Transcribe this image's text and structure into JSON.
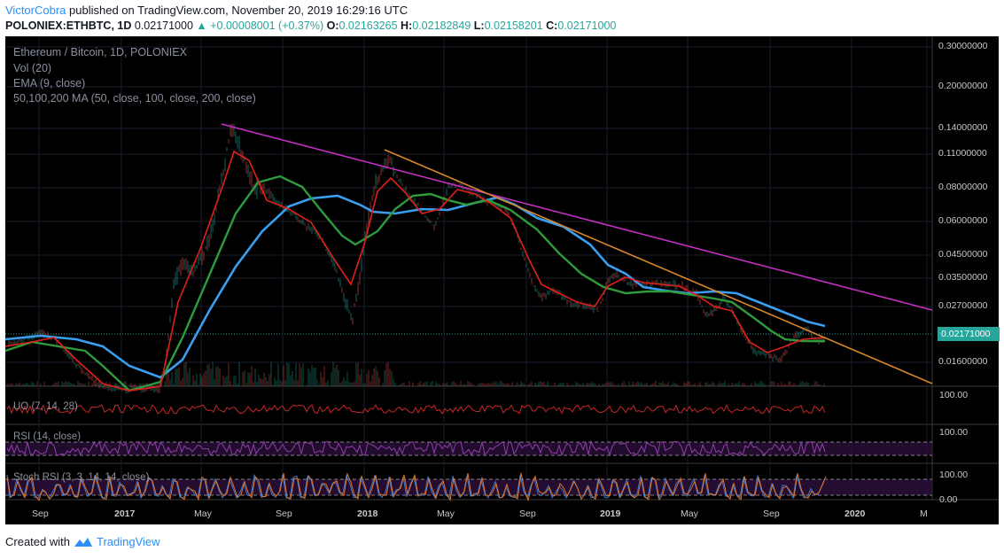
{
  "header": {
    "author": "VictorCobra",
    "published": "published on TradingView.com, November 20, 2019 16:29:16 UTC",
    "symbol": "POLONIEX:ETHBTC, 1D",
    "last": "0.02171000",
    "change": "▲ +0.00008001 (+0.37%)",
    "o_label": "O:",
    "o": "0.02163265",
    "h_label": "H:",
    "h": "0.02182849",
    "l_label": "L:",
    "l": "0.02158201",
    "c_label": "C:",
    "c": "0.02171000"
  },
  "legend": {
    "title": "Ethereum / Bitcoin, 1D, POLONIEX",
    "vol": "Vol (20)",
    "ema": "EMA (9, close)",
    "ma": "50,100,200 MA (50, close, 100, close, 200, close)"
  },
  "indicators": {
    "uo": "UO (7, 14, 28)",
    "uo_axis": "100.00",
    "rsi": "RSI (14, close)",
    "rsi_axis": "100.00",
    "stoch": "Stoch RSI (3, 3, 14, 14, close)",
    "stoch_axis_top": "100.00",
    "stoch_axis_bottom": "0.00"
  },
  "price_axis": [
    "0.30000000",
    "0.20000000",
    "0.14000000",
    "0.11000000",
    "0.08000000",
    "0.06000000",
    "0.04500000",
    "0.03500000",
    "0.02700000",
    "0.01600000"
  ],
  "current_price": "0.02171000",
  "time_axis": [
    {
      "label": "Sep",
      "bold": false
    },
    {
      "label": "2017",
      "bold": true
    },
    {
      "label": "May",
      "bold": false
    },
    {
      "label": "Sep",
      "bold": false
    },
    {
      "label": "2018",
      "bold": true
    },
    {
      "label": "May",
      "bold": false
    },
    {
      "label": "Sep",
      "bold": false
    },
    {
      "label": "2019",
      "bold": true
    },
    {
      "label": "May",
      "bold": false
    },
    {
      "label": "Sep",
      "bold": false
    },
    {
      "label": "2020",
      "bold": true
    },
    {
      "label": "M",
      "bold": false
    }
  ],
  "footer": {
    "created": "Created with",
    "brand": "TradingView"
  },
  "colors": {
    "background": "#000000",
    "ema": "#e0201b",
    "ma50": "#2e9b3c",
    "ma100": "#3a9ff0",
    "trend_magenta": "#c42fc4",
    "trend_orange": "#d8862a",
    "up": "#26a69a",
    "uo": "#c62828",
    "rsi": "#8e3fa8",
    "stoch_k": "#3e78c8",
    "stoch_d": "#e0782a"
  }
}
